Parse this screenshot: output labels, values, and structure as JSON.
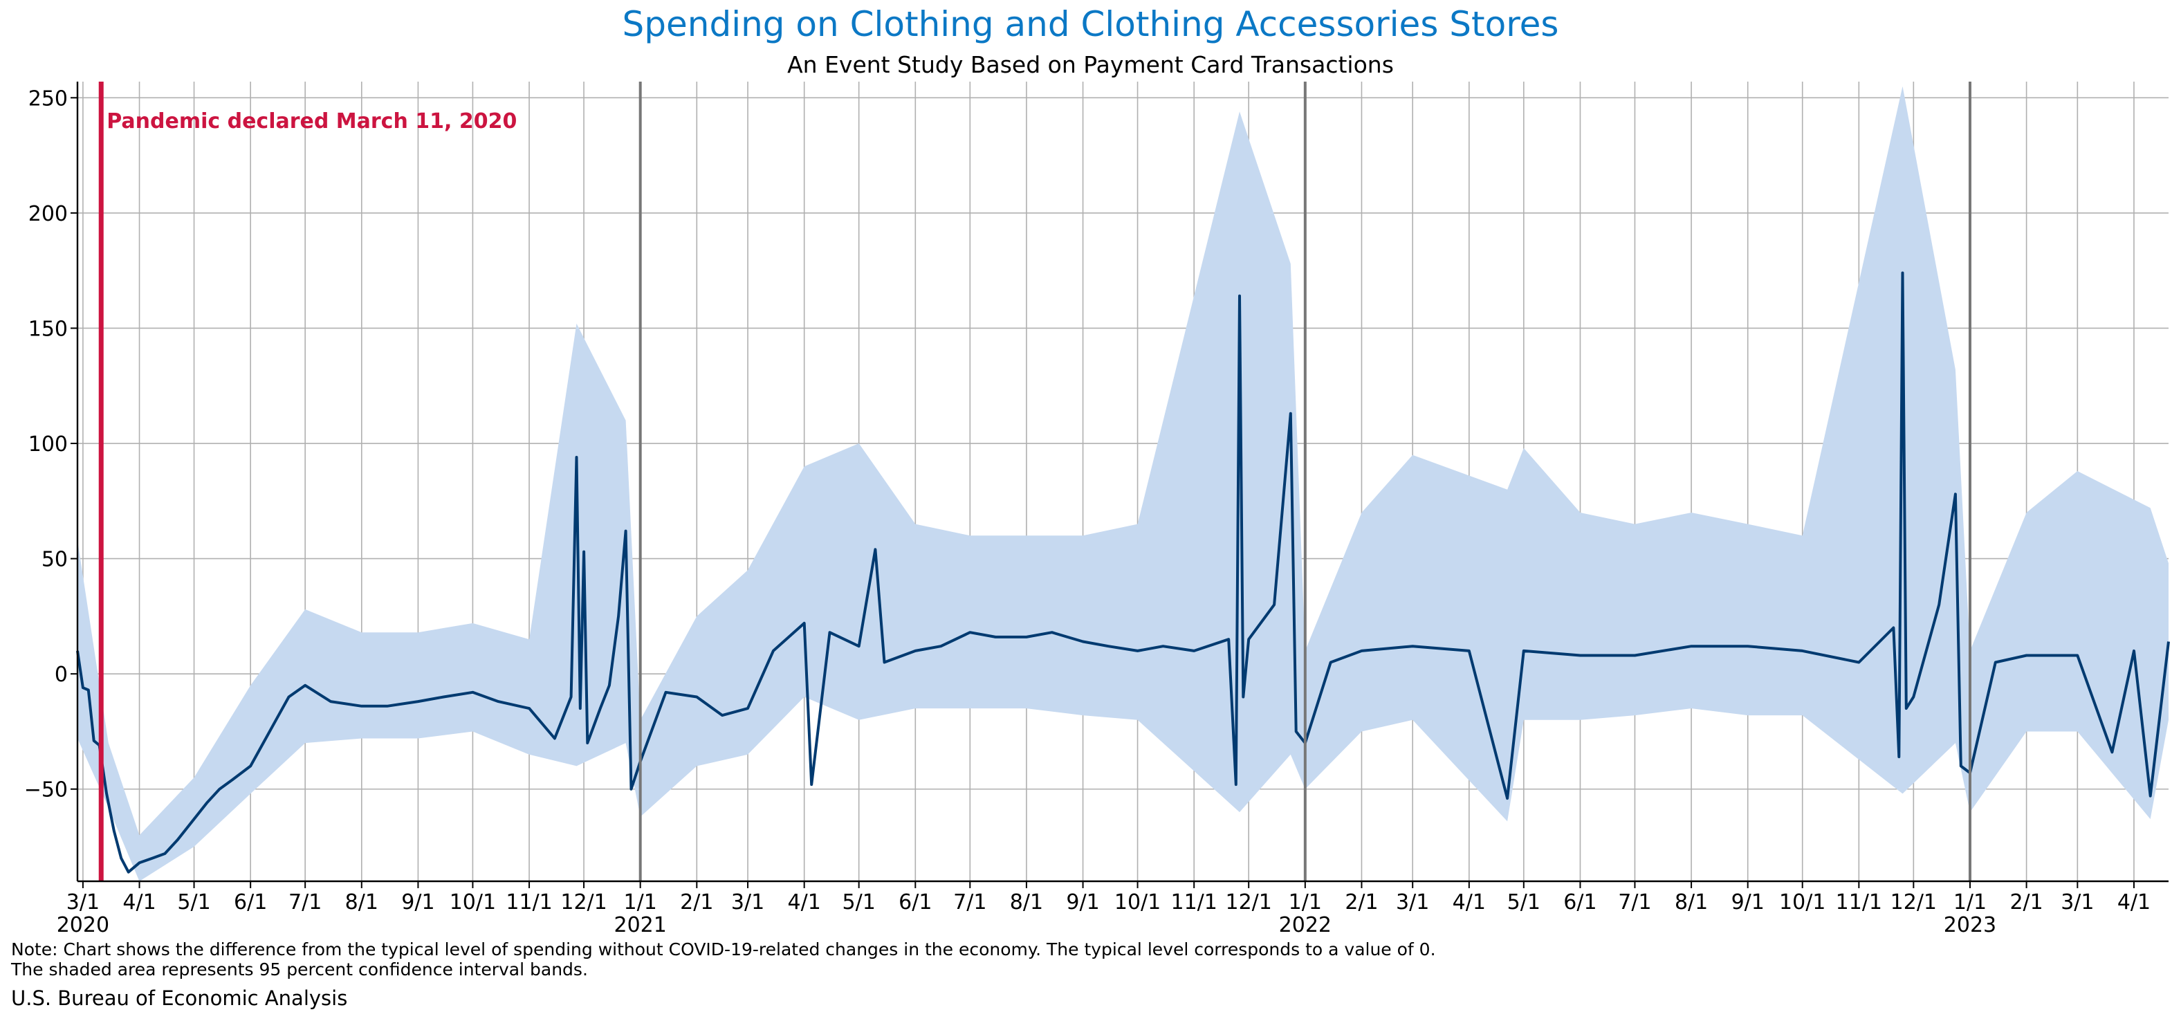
{
  "chart_data": {
    "type": "line",
    "title": "Spending on Clothing and Clothing Accessories Stores",
    "subtitle": "An Event Study Based on Payment Card Transactions",
    "xlabel": "",
    "ylabel": "",
    "ylim": [
      -90,
      257
    ],
    "y_ticks": [
      -50,
      0,
      50,
      100,
      150,
      200,
      250
    ],
    "y_tick_labels": [
      "−50",
      "0",
      "50",
      "100",
      "150",
      "200",
      "250"
    ],
    "x_range": [
      "2020-02-27",
      "2023-04-20"
    ],
    "month_ticks": [
      "2020-03-01",
      "2020-04-01",
      "2020-05-01",
      "2020-06-01",
      "2020-07-01",
      "2020-08-01",
      "2020-09-01",
      "2020-10-01",
      "2020-11-01",
      "2020-12-01",
      "2021-01-01",
      "2021-02-01",
      "2021-03-01",
      "2021-04-01",
      "2021-05-01",
      "2021-06-01",
      "2021-07-01",
      "2021-08-01",
      "2021-09-01",
      "2021-10-01",
      "2021-11-01",
      "2021-12-01",
      "2022-01-01",
      "2022-02-01",
      "2022-03-01",
      "2022-04-01",
      "2022-05-01",
      "2022-06-01",
      "2022-07-01",
      "2022-08-01",
      "2022-09-01",
      "2022-10-01",
      "2022-11-01",
      "2022-12-01",
      "2023-01-01",
      "2023-02-01",
      "2023-03-01",
      "2023-04-01"
    ],
    "month_tick_labels": [
      "3/1",
      "4/1",
      "5/1",
      "6/1",
      "7/1",
      "8/1",
      "9/1",
      "10/1",
      "11/1",
      "12/1",
      "1/1",
      "2/1",
      "3/1",
      "4/1",
      "5/1",
      "6/1",
      "7/1",
      "8/1",
      "9/1",
      "10/1",
      "11/1",
      "12/1",
      "1/1",
      "2/1",
      "3/1",
      "4/1",
      "5/1",
      "6/1",
      "7/1",
      "8/1",
      "9/1",
      "10/1",
      "11/1",
      "12/1",
      "1/1",
      "2/1",
      "3/1",
      "4/1"
    ],
    "year_labels": [
      {
        "date": "2020-03-01",
        "label": "2020"
      },
      {
        "date": "2021-01-01",
        "label": "2021"
      },
      {
        "date": "2022-01-01",
        "label": "2022"
      },
      {
        "date": "2023-01-01",
        "label": "2023"
      }
    ],
    "grid": true,
    "series": [
      {
        "kind": "line",
        "color": "#003a70",
        "points": [
          [
            "2020-02-27",
            10
          ],
          [
            "2020-03-01",
            -6
          ],
          [
            "2020-03-04",
            -7
          ],
          [
            "2020-03-07",
            -29
          ],
          [
            "2020-03-10",
            -31
          ],
          [
            "2020-03-14",
            -52
          ],
          [
            "2020-03-18",
            -68
          ],
          [
            "2020-03-22",
            -80
          ],
          [
            "2020-03-26",
            -86
          ],
          [
            "2020-04-01",
            -82
          ],
          [
            "2020-04-08",
            -80
          ],
          [
            "2020-04-15",
            -78
          ],
          [
            "2020-04-22",
            -72
          ],
          [
            "2020-05-01",
            -63
          ],
          [
            "2020-05-08",
            -56
          ],
          [
            "2020-05-15",
            -50
          ],
          [
            "2020-05-22",
            -46
          ],
          [
            "2020-06-01",
            -40
          ],
          [
            "2020-06-08",
            -30
          ],
          [
            "2020-06-15",
            -20
          ],
          [
            "2020-06-22",
            -10
          ],
          [
            "2020-07-01",
            -5
          ],
          [
            "2020-07-15",
            -12
          ],
          [
            "2020-08-01",
            -14
          ],
          [
            "2020-08-15",
            -14
          ],
          [
            "2020-09-01",
            -12
          ],
          [
            "2020-09-15",
            -10
          ],
          [
            "2020-10-01",
            -8
          ],
          [
            "2020-10-15",
            -12
          ],
          [
            "2020-11-01",
            -15
          ],
          [
            "2020-11-15",
            -28
          ],
          [
            "2020-11-24",
            -10
          ],
          [
            "2020-11-27",
            94
          ],
          [
            "2020-11-29",
            -15
          ],
          [
            "2020-12-01",
            53
          ],
          [
            "2020-12-03",
            -30
          ],
          [
            "2020-12-10",
            -15
          ],
          [
            "2020-12-15",
            -5
          ],
          [
            "2020-12-20",
            25
          ],
          [
            "2020-12-24",
            62
          ],
          [
            "2020-12-27",
            -50
          ],
          [
            "2021-01-01",
            -38
          ],
          [
            "2021-01-15",
            -8
          ],
          [
            "2021-02-01",
            -10
          ],
          [
            "2021-02-15",
            -18
          ],
          [
            "2021-03-01",
            -15
          ],
          [
            "2021-03-15",
            10
          ],
          [
            "2021-04-01",
            22
          ],
          [
            "2021-04-05",
            -48
          ],
          [
            "2021-04-15",
            18
          ],
          [
            "2021-05-01",
            12
          ],
          [
            "2021-05-10",
            54
          ],
          [
            "2021-05-15",
            5
          ],
          [
            "2021-06-01",
            10
          ],
          [
            "2021-06-15",
            12
          ],
          [
            "2021-07-01",
            18
          ],
          [
            "2021-07-15",
            16
          ],
          [
            "2021-08-01",
            16
          ],
          [
            "2021-08-15",
            18
          ],
          [
            "2021-09-01",
            14
          ],
          [
            "2021-09-15",
            12
          ],
          [
            "2021-10-01",
            10
          ],
          [
            "2021-10-15",
            12
          ],
          [
            "2021-11-01",
            10
          ],
          [
            "2021-11-20",
            15
          ],
          [
            "2021-11-24",
            -48
          ],
          [
            "2021-11-26",
            164
          ],
          [
            "2021-11-28",
            -10
          ],
          [
            "2021-12-01",
            15
          ],
          [
            "2021-12-15",
            30
          ],
          [
            "2021-12-24",
            113
          ],
          [
            "2021-12-27",
            -25
          ],
          [
            "2022-01-01",
            -30
          ],
          [
            "2022-01-15",
            5
          ],
          [
            "2022-02-01",
            10
          ],
          [
            "2022-03-01",
            12
          ],
          [
            "2022-04-01",
            10
          ],
          [
            "2022-04-22",
            -54
          ],
          [
            "2022-05-01",
            10
          ],
          [
            "2022-06-01",
            8
          ],
          [
            "2022-07-01",
            8
          ],
          [
            "2022-08-01",
            12
          ],
          [
            "2022-09-01",
            12
          ],
          [
            "2022-10-01",
            10
          ],
          [
            "2022-11-01",
            5
          ],
          [
            "2022-11-20",
            20
          ],
          [
            "2022-11-23",
            -36
          ],
          [
            "2022-11-25",
            174
          ],
          [
            "2022-11-27",
            -15
          ],
          [
            "2022-12-01",
            -10
          ],
          [
            "2022-12-15",
            30
          ],
          [
            "2022-12-24",
            78
          ],
          [
            "2022-12-27",
            -40
          ],
          [
            "2023-01-01",
            -43
          ],
          [
            "2023-01-15",
            5
          ],
          [
            "2023-02-01",
            8
          ],
          [
            "2023-03-01",
            8
          ],
          [
            "2023-03-20",
            -34
          ],
          [
            "2023-04-01",
            10
          ],
          [
            "2023-04-10",
            -53
          ],
          [
            "2023-04-20",
            14
          ]
        ]
      },
      {
        "kind": "band",
        "name": "95 percent confidence interval",
        "color": "#c6d9f0",
        "points": [
          [
            "2020-02-27",
            -28,
            58
          ],
          [
            "2020-03-15",
            -58,
            -30
          ],
          [
            "2020-04-01",
            -90,
            -70
          ],
          [
            "2020-05-01",
            -75,
            -45
          ],
          [
            "2020-06-01",
            -52,
            -5
          ],
          [
            "2020-07-01",
            -30,
            28
          ],
          [
            "2020-08-01",
            -28,
            18
          ],
          [
            "2020-09-01",
            -28,
            18
          ],
          [
            "2020-10-01",
            -25,
            22
          ],
          [
            "2020-11-01",
            -35,
            15
          ],
          [
            "2020-11-27",
            -40,
            152
          ],
          [
            "2020-12-24",
            -30,
            110
          ],
          [
            "2021-01-01",
            -62,
            -20
          ],
          [
            "2021-02-01",
            -40,
            25
          ],
          [
            "2021-03-01",
            -35,
            45
          ],
          [
            "2021-04-01",
            -10,
            90
          ],
          [
            "2021-05-01",
            -20,
            100
          ],
          [
            "2021-06-01",
            -15,
            65
          ],
          [
            "2021-07-01",
            -15,
            60
          ],
          [
            "2021-08-01",
            -15,
            60
          ],
          [
            "2021-09-01",
            -18,
            60
          ],
          [
            "2021-10-01",
            -20,
            65
          ],
          [
            "2021-11-26",
            -60,
            244
          ],
          [
            "2021-12-24",
            -35,
            178
          ],
          [
            "2022-01-01",
            -50,
            10
          ],
          [
            "2022-02-01",
            -25,
            70
          ],
          [
            "2022-03-01",
            -20,
            95
          ],
          [
            "2022-04-22",
            -64,
            80
          ],
          [
            "2022-05-01",
            -20,
            98
          ],
          [
            "2022-06-01",
            -20,
            70
          ],
          [
            "2022-07-01",
            -18,
            65
          ],
          [
            "2022-08-01",
            -15,
            70
          ],
          [
            "2022-09-01",
            -18,
            65
          ],
          [
            "2022-10-01",
            -18,
            60
          ],
          [
            "2022-11-25",
            -52,
            255
          ],
          [
            "2022-12-24",
            -30,
            132
          ],
          [
            "2023-01-01",
            -60,
            10
          ],
          [
            "2023-02-01",
            -25,
            70
          ],
          [
            "2023-03-01",
            -25,
            88
          ],
          [
            "2023-04-10",
            -63,
            72
          ],
          [
            "2023-04-20",
            -20,
            48
          ]
        ]
      }
    ],
    "annotations": [
      {
        "type": "vline",
        "date": "2020-03-11",
        "color": "#cc1440",
        "label": "Pandemic declared March 11, 2020"
      },
      {
        "type": "vline",
        "date": "2021-01-01",
        "color": "#777777",
        "label": ""
      },
      {
        "type": "vline",
        "date": "2022-01-01",
        "color": "#777777",
        "label": ""
      },
      {
        "type": "vline",
        "date": "2023-01-01",
        "color": "#777777",
        "label": ""
      }
    ]
  },
  "note_line1": "Note: Chart shows the difference from the typical level of spending without COVID-19-related changes in the economy. The typical level corresponds to a value of 0.",
  "note_line2": "The shaded area represents 95 percent confidence interval bands.",
  "source": "U.S. Bureau of Economic Analysis"
}
